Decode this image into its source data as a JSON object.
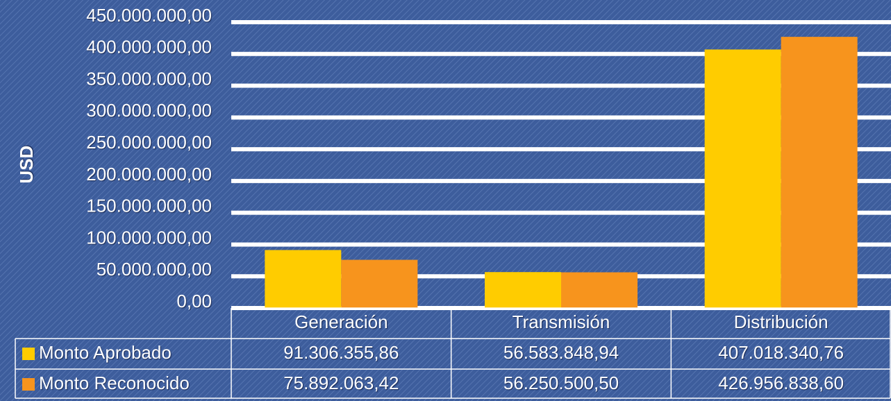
{
  "chart_data": {
    "type": "bar",
    "y_label": "USD",
    "categories": [
      "Generación",
      "Transmisión",
      "Distribución"
    ],
    "series": [
      {
        "name": "Monto Aprobado",
        "color": "#ffcc00",
        "values": [
          91306355.86,
          56583848.94,
          407018340.76
        ],
        "value_labels": [
          "91.306.355,86",
          "56.583.848,94",
          "407.018.340,76"
        ]
      },
      {
        "name": "Monto Reconocido",
        "color": "#f7941d",
        "values": [
          75892063.42,
          56250500.5,
          426956838.6
        ],
        "value_labels": [
          "75.892.063,42",
          "56.250.500,50",
          "426.956.838,60"
        ]
      }
    ],
    "ylim": [
      0,
      450000000
    ],
    "yticks": [
      {
        "value": 0,
        "label": "0,00"
      },
      {
        "value": 50000000,
        "label": "50.000.000,00"
      },
      {
        "value": 100000000,
        "label": "100.000.000,00"
      },
      {
        "value": 150000000,
        "label": "150.000.000,00"
      },
      {
        "value": 200000000,
        "label": "200.000.000,00"
      },
      {
        "value": 250000000,
        "label": "250.000.000,00"
      },
      {
        "value": 300000000,
        "label": "300.000.000,00"
      },
      {
        "value": 350000000,
        "label": "350.000.000,00"
      },
      {
        "value": 400000000,
        "label": "400.000.000,00"
      },
      {
        "value": 450000000,
        "label": "450.000.000,00"
      }
    ],
    "grid": true
  }
}
